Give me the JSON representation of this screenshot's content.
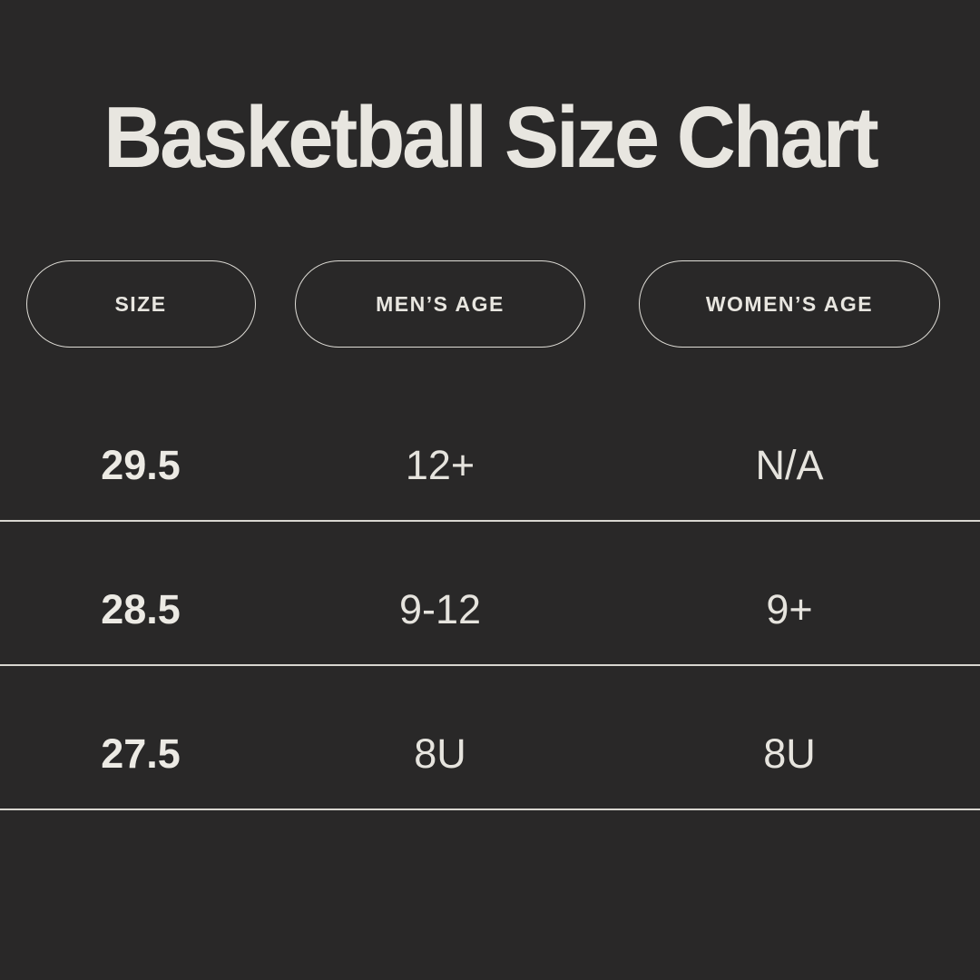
{
  "title": "Basketball Size Chart",
  "colors": {
    "background": "#292828",
    "text": "#e8e6e0",
    "divider": "#d8d6d0",
    "pill_border": "#dedcd6"
  },
  "chart_data": {
    "type": "table",
    "title": "Basketball Size Chart",
    "columns": [
      "SIZE",
      "MEN’S AGE",
      "WOMEN’S AGE"
    ],
    "rows": [
      [
        "29.5",
        "12+",
        "N/A"
      ],
      [
        "28.5",
        "9-12",
        "9+"
      ],
      [
        "27.5",
        "8U",
        "8U"
      ]
    ],
    "layout": {
      "header_style": "outlined-pill",
      "row_dividers": true,
      "first_column_bold": true
    }
  }
}
